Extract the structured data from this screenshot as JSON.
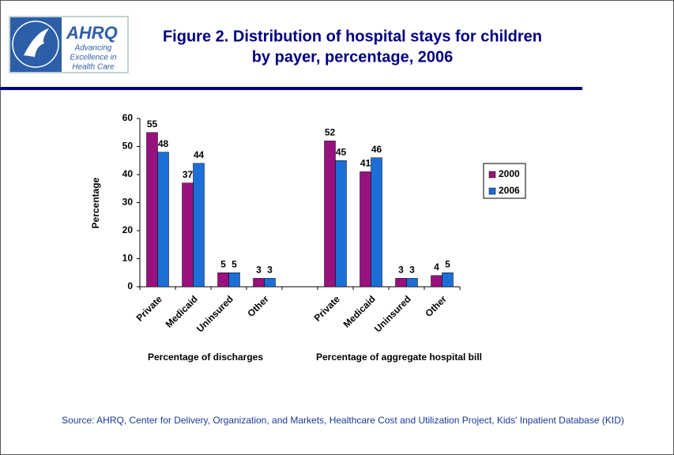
{
  "logo": {
    "name": "AHRQ",
    "tagline": [
      "Advancing",
      "Excellence in",
      "Health Care"
    ]
  },
  "chart_data": {
    "type": "bar",
    "title": [
      "Figure 2. Distribution of hospital stays for children",
      "by payer, percentage, 2006"
    ],
    "y_label": "Percentage",
    "categories": [
      "Private",
      "Medicaid",
      "Uninsured",
      "Other",
      null,
      "Private",
      "Medicaid",
      "Uninsured",
      "Other"
    ],
    "group_labels": [
      "Percentage of discharges",
      "Percentage of aggregate hospital bill"
    ],
    "series": [
      {
        "name": "2000",
        "color": "#99117f",
        "values": [
          55,
          37,
          5,
          3,
          null,
          52,
          41,
          3,
          4
        ]
      },
      {
        "name": "2006",
        "color": "#1c6fd6",
        "values": [
          48,
          44,
          5,
          3,
          null,
          45,
          46,
          3,
          5
        ]
      }
    ],
    "ylim": [
      0,
      60
    ],
    "yticks": [
      0,
      10,
      20,
      30,
      40,
      50,
      60
    ],
    "grid": false,
    "legend": "right",
    "source": "Source: AHRQ, Center for Delivery, Organization, and Markets, Healthcare Cost and Utilization Project, Kids' Inpatient Database (KID)"
  }
}
